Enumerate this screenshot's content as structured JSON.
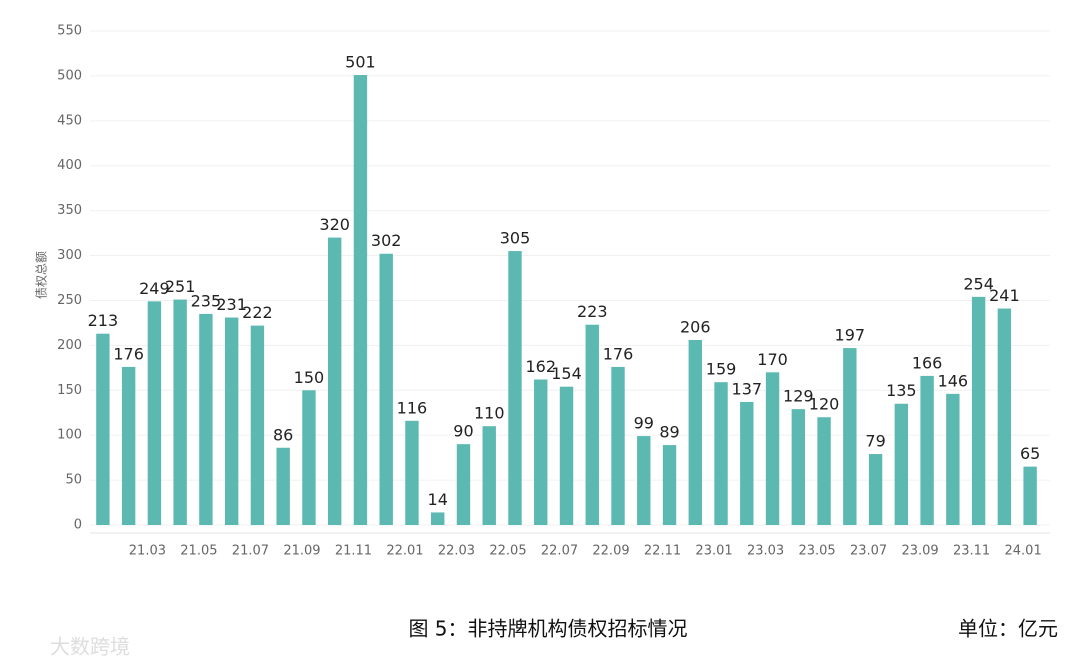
{
  "chart_data": {
    "type": "bar",
    "y_label": "债权总额",
    "categories": [
      null,
      null,
      "21.03",
      null,
      "21.05",
      null,
      "21.07",
      null,
      "21.09",
      null,
      "21.11",
      null,
      "22.01",
      null,
      "22.03",
      null,
      "22.05",
      null,
      "22.07",
      null,
      "22.09",
      null,
      "22.11",
      null,
      "23.01",
      null,
      "23.03",
      null,
      "23.05",
      null,
      "23.07",
      null,
      "23.09",
      null,
      "23.11",
      null,
      "24.01"
    ],
    "values": [
      213,
      176,
      249,
      251,
      235,
      231,
      222,
      86,
      150,
      320,
      501,
      302,
      116,
      14,
      90,
      110,
      305,
      162,
      154,
      223,
      176,
      99,
      89,
      206,
      159,
      137,
      170,
      129,
      120,
      197,
      79,
      135,
      166,
      146,
      254,
      241,
      65
    ],
    "color": "#5cb9b1",
    "ylim": [
      0,
      550
    ],
    "yticks": [
      0,
      50,
      100,
      150,
      200,
      250,
      300,
      350,
      400,
      450,
      500,
      550
    ],
    "grid": true
  },
  "caption": "图 5：非持牌机构债权招标情况",
  "unit": "单位：亿元",
  "watermark": "大数跨境"
}
